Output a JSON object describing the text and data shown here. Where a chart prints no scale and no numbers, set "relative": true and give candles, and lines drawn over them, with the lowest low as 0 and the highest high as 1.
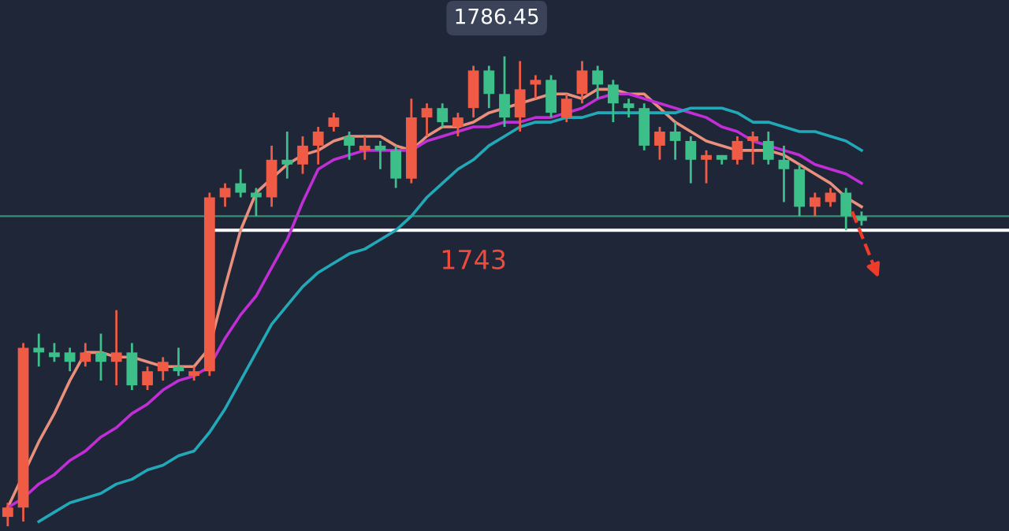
{
  "chart_data": {
    "type": "candlestick",
    "relative": true,
    "categories": [
      null,
      null,
      null,
      null,
      null,
      null,
      null,
      null,
      null,
      null,
      null,
      null,
      null,
      null,
      null,
      null,
      null,
      null,
      null,
      null,
      null,
      null,
      null,
      null,
      null,
      null,
      null,
      null,
      null,
      null,
      null,
      null,
      null,
      null,
      null,
      null,
      null,
      null,
      null,
      null,
      null,
      null,
      null,
      null,
      null,
      null,
      null,
      null,
      null,
      null,
      null,
      null,
      null,
      null,
      null,
      null
    ],
    "ohlc": [
      [
        0.02,
        0.05,
        0,
        0.04
      ],
      [
        0.04,
        0.39,
        0.01,
        0.38
      ],
      [
        0.38,
        0.41,
        0.34,
        0.37
      ],
      [
        0.37,
        0.39,
        0.35,
        0.36
      ],
      [
        0.37,
        0.38,
        0.33,
        0.35
      ],
      [
        0.35,
        0.39,
        0.34,
        0.37
      ],
      [
        0.37,
        0.41,
        0.31,
        0.35
      ],
      [
        0.35,
        0.46,
        0.3,
        0.37
      ],
      [
        0.37,
        0.39,
        0.29,
        0.3
      ],
      [
        0.3,
        0.34,
        0.29,
        0.33
      ],
      [
        0.33,
        0.36,
        0.31,
        0.35
      ],
      [
        0.34,
        0.38,
        0.32,
        0.33
      ],
      [
        0.32,
        0.34,
        0.31,
        0.33
      ],
      [
        0.33,
        0.71,
        0.32,
        0.7
      ],
      [
        0.7,
        0.73,
        0.68,
        0.72
      ],
      [
        0.73,
        0.76,
        0.7,
        0.71
      ],
      [
        0.71,
        0.72,
        0.66,
        0.7
      ],
      [
        0.7,
        0.81,
        0.68,
        0.78
      ],
      [
        0.78,
        0.84,
        0.74,
        0.77
      ],
      [
        0.77,
        0.83,
        0.75,
        0.81
      ],
      [
        0.81,
        0.85,
        0.77,
        0.84
      ],
      [
        0.85,
        0.88,
        0.84,
        0.87
      ],
      [
        0.83,
        0.84,
        0.78,
        0.81
      ],
      [
        0.8,
        0.83,
        0.78,
        0.81
      ],
      [
        0.81,
        0.82,
        0.76,
        0.8
      ],
      [
        0.8,
        0.81,
        0.72,
        0.74
      ],
      [
        0.74,
        0.91,
        0.73,
        0.87
      ],
      [
        0.87,
        0.9,
        0.83,
        0.89
      ],
      [
        0.89,
        0.9,
        0.85,
        0.86
      ],
      [
        0.85,
        0.88,
        0.83,
        0.87
      ],
      [
        0.89,
        0.98,
        0.87,
        0.97
      ],
      [
        0.97,
        0.98,
        0.89,
        0.92
      ],
      [
        0.92,
        1,
        0.85,
        0.87
      ],
      [
        0.87,
        0.99,
        0.84,
        0.93
      ],
      [
        0.94,
        0.96,
        0.91,
        0.95
      ],
      [
        0.95,
        0.96,
        0.87,
        0.88
      ],
      [
        0.87,
        0.92,
        0.86,
        0.91
      ],
      [
        0.92,
        0.99,
        0.9,
        0.97
      ],
      [
        0.97,
        0.98,
        0.91,
        0.94
      ],
      [
        0.94,
        0.95,
        0.86,
        0.9
      ],
      [
        0.9,
        0.91,
        0.87,
        0.89
      ],
      [
        0.89,
        0.9,
        0.8,
        0.81
      ],
      [
        0.81,
        0.85,
        0.78,
        0.84
      ],
      [
        0.84,
        0.86,
        0.78,
        0.82
      ],
      [
        0.82,
        0.83,
        0.73,
        0.78
      ],
      [
        0.78,
        0.8,
        0.73,
        0.79
      ],
      [
        0.79,
        0.79,
        0.77,
        0.78
      ],
      [
        0.78,
        0.83,
        0.77,
        0.82
      ],
      [
        0.82,
        0.84,
        0.77,
        0.83
      ],
      [
        0.82,
        0.84,
        0.77,
        0.78
      ],
      [
        0.78,
        0.81,
        0.69,
        0.76
      ],
      [
        0.76,
        0.77,
        0.66,
        0.68
      ],
      [
        0.68,
        0.71,
        0.66,
        0.7
      ],
      [
        0.69,
        0.72,
        0.68,
        0.71
      ],
      [
        0.71,
        0.72,
        0.63,
        0.66
      ],
      [
        0.66,
        0.67,
        0.64,
        0.65
      ]
    ],
    "colors": [
      "#ef5b45",
      "#ef5b45",
      "#3dbf8a",
      "#3dbf8a",
      "#3dbf8a",
      "#ef5b45",
      "#3dbf8a",
      "#ef5b45",
      "#3dbf8a",
      "#ef5b45",
      "#ef5b45",
      "#3dbf8a",
      "#ef5b45",
      "#ef5b45",
      "#ef5b45",
      "#3dbf8a",
      "#3dbf8a",
      "#ef5b45",
      "#3dbf8a",
      "#ef5b45",
      "#ef5b45",
      "#ef5b45",
      "#3dbf8a",
      "#ef5b45",
      "#3dbf8a",
      "#3dbf8a",
      "#ef5b45",
      "#ef5b45",
      "#3dbf8a",
      "#ef5b45",
      "#ef5b45",
      "#3dbf8a",
      "#3dbf8a",
      "#ef5b45",
      "#ef5b45",
      "#3dbf8a",
      "#ef5b45",
      "#ef5b45",
      "#3dbf8a",
      "#3dbf8a",
      "#3dbf8a",
      "#3dbf8a",
      "#ef5b45",
      "#3dbf8a",
      "#3dbf8a",
      "#ef5b45",
      "#3dbf8a",
      "#ef5b45",
      "#ef5b45",
      "#3dbf8a",
      "#3dbf8a",
      "#3dbf8a",
      "#ef5b45",
      "#ef5b45",
      "#3dbf8a",
      "#3dbf8a"
    ],
    "series": [
      {
        "type": "line",
        "color": "#e8907c",
        "values": [
          0.04,
          null,
          0.18,
          0.24,
          0.31,
          0.37,
          0.37,
          0.36,
          0.36,
          0.35,
          0.34,
          0.34,
          0.34,
          0.38,
          0.51,
          0.63,
          0.71,
          0.74,
          0.77,
          0.79,
          0.8,
          0.82,
          0.83,
          0.83,
          0.83,
          0.81,
          0.8,
          0.83,
          0.85,
          0.85,
          0.86,
          0.88,
          0.89,
          0.9,
          0.91,
          0.92,
          0.92,
          0.91,
          0.93,
          0.93,
          0.92,
          0.92,
          0.89,
          0.86,
          0.84,
          0.82,
          0.81,
          0.8,
          0.8,
          0.8,
          0.79,
          0.77,
          0.75,
          0.73,
          0.7,
          0.68
        ]
      },
      {
        "type": "line",
        "color": "#c02ed6",
        "values": [
          0.04,
          0.06,
          0.09,
          0.11,
          0.14,
          0.16,
          0.19,
          0.21,
          0.24,
          0.26,
          0.29,
          0.31,
          0.32,
          0.34,
          0.4,
          0.45,
          0.49,
          0.55,
          0.61,
          0.69,
          0.76,
          0.78,
          0.79,
          0.8,
          0.8,
          0.8,
          0.8,
          0.82,
          0.83,
          0.84,
          0.85,
          0.85,
          0.86,
          0.86,
          0.87,
          0.87,
          0.88,
          0.89,
          0.91,
          0.92,
          0.92,
          0.91,
          0.9,
          0.89,
          0.88,
          0.87,
          0.85,
          0.84,
          0.82,
          0.81,
          0.8,
          0.79,
          0.77,
          0.76,
          0.75,
          0.73
        ]
      },
      {
        "type": "line",
        "color": "#22a9b8",
        "values": [
          null,
          null,
          0.01,
          0.03,
          0.05,
          0.06,
          0.07,
          0.09,
          0.1,
          0.12,
          0.13,
          0.15,
          0.16,
          0.2,
          0.25,
          0.31,
          0.37,
          0.43,
          0.47,
          0.51,
          0.54,
          0.56,
          0.58,
          0.59,
          0.61,
          0.63,
          0.66,
          0.7,
          0.73,
          0.76,
          0.78,
          0.81,
          0.83,
          0.85,
          0.86,
          0.86,
          0.87,
          0.87,
          0.88,
          0.88,
          0.88,
          0.88,
          0.88,
          0.88,
          0.89,
          0.89,
          0.89,
          0.88,
          0.86,
          0.86,
          0.85,
          0.84,
          0.84,
          0.83,
          0.82,
          0.8
        ]
      }
    ],
    "ref_lines": [
      {
        "axis": "y",
        "value": 0.66,
        "color": "#3dbf8a"
      },
      {
        "axis": "y",
        "value": 0.63,
        "color": "#ffffff"
      }
    ],
    "annotations": [
      "1786.45",
      "1743"
    ]
  }
}
